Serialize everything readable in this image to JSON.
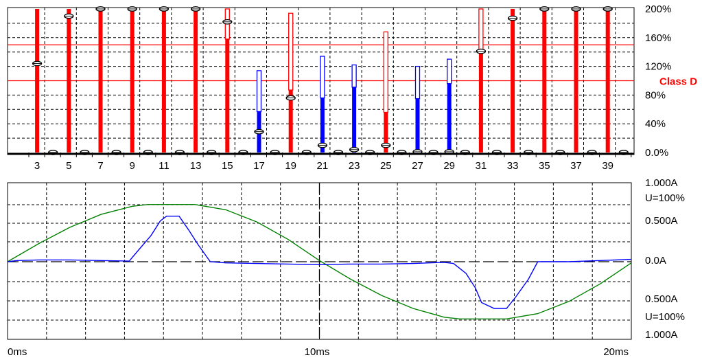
{
  "chart_data": [
    {
      "type": "bar",
      "title": "",
      "xlabel": "",
      "ylabel": "",
      "ylim": [
        0,
        200
      ],
      "y_tick_labels": [
        "200%",
        "160%",
        "120%",
        "80%",
        "40%",
        "0.0%"
      ],
      "x_tick_labels": [
        "3",
        "5",
        "7",
        "9",
        "11",
        "13",
        "15",
        "17",
        "19",
        "21",
        "23",
        "25",
        "27",
        "29",
        "31",
        "33",
        "35",
        "37",
        "39"
      ],
      "limit_lines": [
        {
          "label": "Class D",
          "value": 100,
          "color": "#ff0000"
        },
        {
          "label": "",
          "value": 150,
          "color": "#ff0000"
        }
      ],
      "grid": true,
      "harmonics": [
        {
          "order": 2,
          "value": 0,
          "max": 0,
          "color": "#008000"
        },
        {
          "order": 3,
          "value": 200,
          "max": 200,
          "marker": 124,
          "color": "#ff0000"
        },
        {
          "order": 4,
          "value": 3,
          "max": 3,
          "marker": 0,
          "color": "#008000"
        },
        {
          "order": 5,
          "value": 200,
          "max": 200,
          "marker": 190,
          "color": "#ff0000"
        },
        {
          "order": 6,
          "value": 3,
          "max": 3,
          "marker": 0,
          "color": "#008000"
        },
        {
          "order": 7,
          "value": 200,
          "max": 200,
          "marker": 200,
          "color": "#ff0000"
        },
        {
          "order": 8,
          "value": 2,
          "max": 2,
          "marker": 0,
          "color": "#008000"
        },
        {
          "order": 9,
          "value": 200,
          "max": 200,
          "marker": 200,
          "color": "#ff0000"
        },
        {
          "order": 10,
          "value": 2,
          "max": 2,
          "marker": 0,
          "color": "#008000"
        },
        {
          "order": 11,
          "value": 200,
          "max": 200,
          "marker": 200,
          "color": "#ff0000"
        },
        {
          "order": 12,
          "value": 2,
          "max": 2,
          "marker": 0,
          "color": "#008000"
        },
        {
          "order": 13,
          "value": 200,
          "max": 200,
          "marker": 200,
          "color": "#ff0000"
        },
        {
          "order": 14,
          "value": 1,
          "max": 1,
          "marker": 0,
          "color": "#008000"
        },
        {
          "order": 15,
          "value": 158,
          "max": 200,
          "marker": 182,
          "color": "#ff0000"
        },
        {
          "order": 16,
          "value": 1,
          "max": 1,
          "marker": 0,
          "color": "#008000"
        },
        {
          "order": 17,
          "value": 57,
          "max": 114,
          "marker": 29,
          "color": "#0000ff"
        },
        {
          "order": 18,
          "value": 1,
          "max": 1,
          "marker": 0,
          "color": "#008000"
        },
        {
          "order": 19,
          "value": 87,
          "max": 194,
          "marker": 76,
          "color": "#ff0000"
        },
        {
          "order": 20,
          "value": 1,
          "max": 1,
          "marker": 0,
          "color": "#008000"
        },
        {
          "order": 21,
          "value": 76,
          "max": 134,
          "marker": 10,
          "color": "#0000ff"
        },
        {
          "order": 22,
          "value": 1,
          "max": 1,
          "marker": 0,
          "color": "#008000"
        },
        {
          "order": 23,
          "value": 91,
          "max": 122,
          "marker": 4,
          "color": "#0000ff"
        },
        {
          "order": 24,
          "value": 1,
          "max": 1,
          "marker": 0,
          "color": "#008000"
        },
        {
          "order": 25,
          "value": 56,
          "max": 168,
          "marker": 10,
          "color": "#ff0000"
        },
        {
          "order": 26,
          "value": 1,
          "max": 1,
          "marker": 0,
          "color": "#008000"
        },
        {
          "order": 27,
          "value": 75,
          "max": 120,
          "marker": 1,
          "color": "#0000ff"
        },
        {
          "order": 28,
          "value": 1,
          "max": 1,
          "marker": 0,
          "color": "#008000"
        },
        {
          "order": 29,
          "value": 96,
          "max": 130,
          "marker": 1,
          "color": "#0000ff"
        },
        {
          "order": 30,
          "value": 1,
          "max": 1,
          "marker": 0,
          "color": "#008000"
        },
        {
          "order": 31,
          "value": 140,
          "max": 200,
          "marker": 141,
          "color": "#ff0000"
        },
        {
          "order": 32,
          "value": 1,
          "max": 1,
          "marker": 0,
          "color": "#008000"
        },
        {
          "order": 33,
          "value": 200,
          "max": 200,
          "marker": 187,
          "color": "#ff0000"
        },
        {
          "order": 34,
          "value": 1,
          "max": 1,
          "marker": 0,
          "color": "#008000"
        },
        {
          "order": 35,
          "value": 200,
          "max": 200,
          "marker": 200,
          "color": "#ff0000"
        },
        {
          "order": 36,
          "value": 1,
          "max": 1,
          "marker": 0,
          "color": "#008000"
        },
        {
          "order": 37,
          "value": 200,
          "max": 200,
          "marker": 200,
          "color": "#ff0000"
        },
        {
          "order": 38,
          "value": 1,
          "max": 1,
          "marker": 0,
          "color": "#008000"
        },
        {
          "order": 39,
          "value": 200,
          "max": 200,
          "marker": 200,
          "color": "#ff0000"
        },
        {
          "order": 40,
          "value": 1,
          "max": 1,
          "marker": 0,
          "color": "#008000"
        }
      ]
    },
    {
      "type": "line",
      "title": "",
      "xlabel": "",
      "ylabel": "",
      "x_unit": "ms",
      "xlim": [
        0,
        20
      ],
      "x_tick_labels": [
        "0ms",
        "10ms",
        "20ms"
      ],
      "ylim": [
        -1,
        1
      ],
      "y_tick_labels": [
        "1.000A",
        "U=100%",
        "0.500A",
        "0.0A",
        "0.500A",
        "U=100%",
        "1.000A"
      ],
      "grid": true,
      "series": [
        {
          "name": "",
          "color": "#008000",
          "kind": "voltage",
          "x": [
            0,
            1,
            2,
            3,
            4,
            4.5,
            5,
            5.5,
            6,
            7,
            8,
            9,
            10,
            11,
            12,
            13,
            14,
            14.5,
            15,
            15.5,
            16,
            17,
            18,
            19,
            20
          ],
          "values": [
            0.0,
            0.31,
            0.59,
            0.81,
            0.95,
            0.98,
            0.98,
            0.98,
            0.98,
            0.89,
            0.68,
            0.38,
            0.02,
            -0.3,
            -0.58,
            -0.8,
            -0.95,
            -0.98,
            -0.98,
            -0.98,
            -0.98,
            -0.89,
            -0.68,
            -0.38,
            -0.02
          ]
        },
        {
          "name": "",
          "color": "#0000ff",
          "kind": "current",
          "x": [
            0,
            0.3,
            1,
            2,
            3,
            3.9,
            4.2,
            4.6,
            4.9,
            5.1,
            5.5,
            5.8,
            6.1,
            6.5,
            7,
            8,
            9,
            10,
            11,
            12,
            13,
            14,
            14.3,
            14.7,
            15,
            15.2,
            15.6,
            16,
            16.3,
            16.7,
            17,
            18,
            19,
            20
          ],
          "values": [
            0.0,
            0.02,
            0.03,
            0.03,
            0.02,
            0.01,
            0.2,
            0.45,
            0.7,
            0.78,
            0.78,
            0.55,
            0.3,
            0.0,
            -0.02,
            -0.03,
            -0.04,
            -0.05,
            -0.04,
            -0.04,
            -0.03,
            -0.01,
            -0.03,
            -0.2,
            -0.45,
            -0.7,
            -0.8,
            -0.8,
            -0.6,
            -0.3,
            0.0,
            0.0,
            0.02,
            0.04
          ]
        }
      ]
    }
  ]
}
